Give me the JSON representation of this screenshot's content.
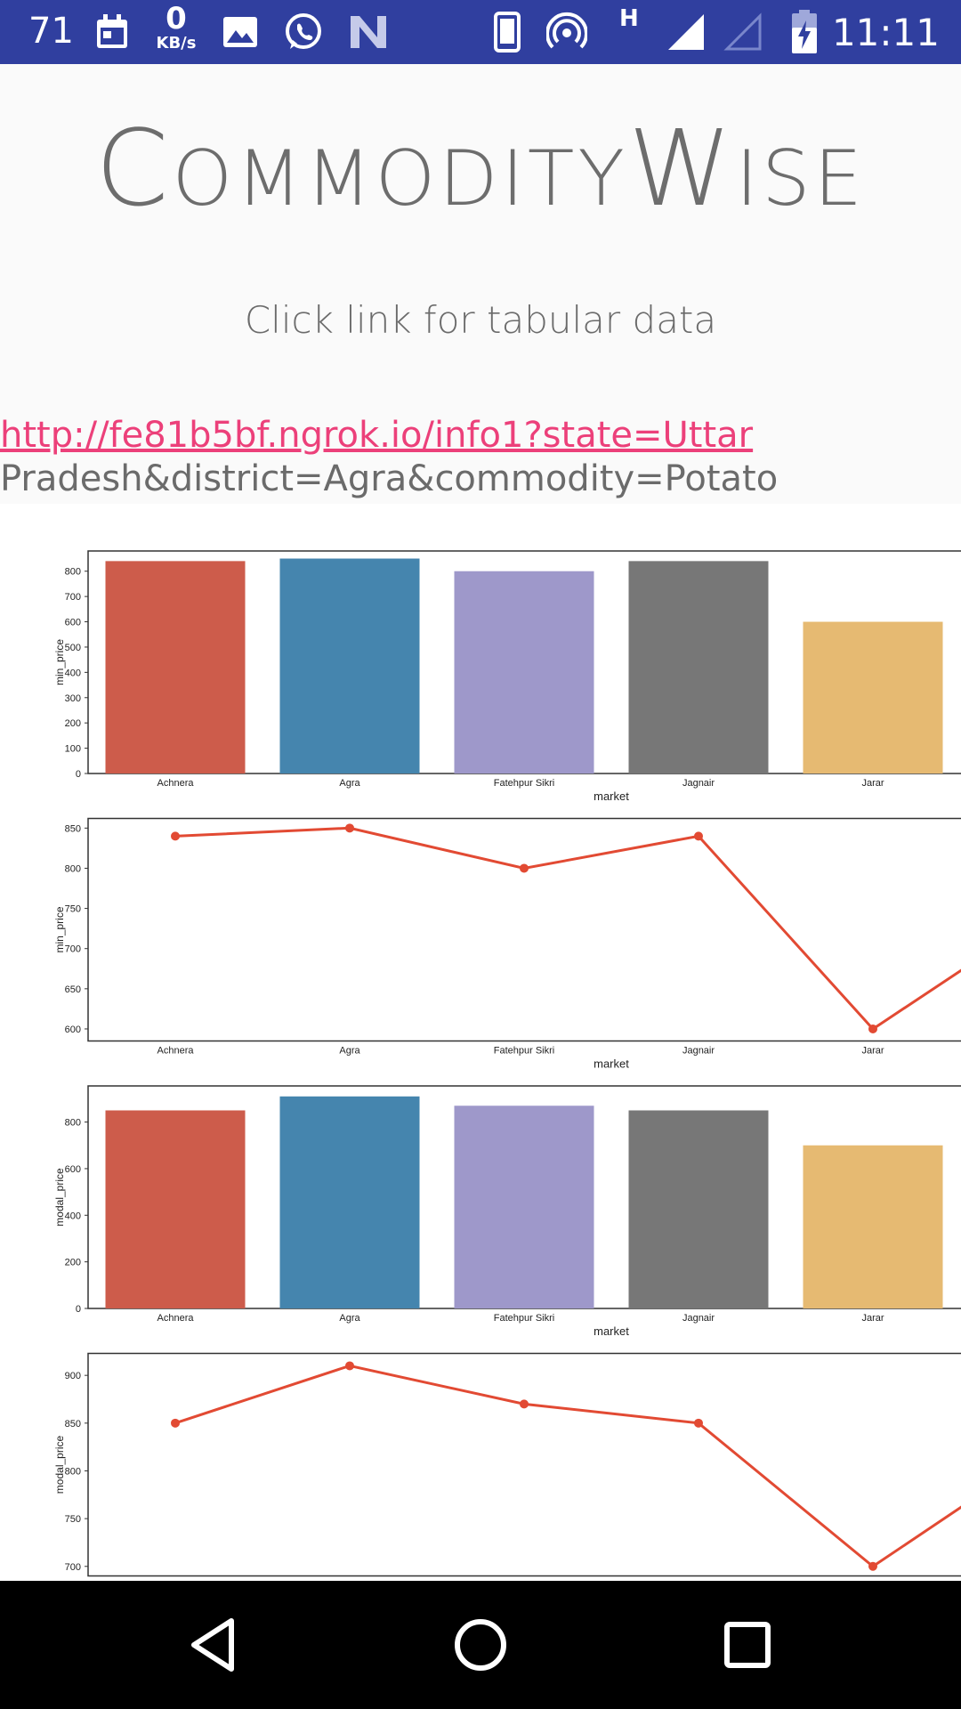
{
  "status_bar": {
    "notif_count": "71",
    "net_speed_value": "0",
    "net_speed_unit": "KB/s",
    "network_label": "H",
    "time": "11:11",
    "icons": [
      "calendar-icon",
      "image-icon",
      "whatsapp-icon",
      "n-app-icon",
      "phone-icon",
      "hotspot-icon",
      "signal-icon",
      "signal-empty-icon",
      "battery-charging-icon"
    ]
  },
  "app": {
    "title_c": "C",
    "title_ommodity": "OMMODITY",
    "title_w": "W",
    "title_ise": "ISE",
    "subtitle": "Click link for tabular data",
    "link_line1": "http://fe81b5bf.ngrok.io/info1?state=Uttar",
    "link_line2": "Pradesh&district=Agra&commodity=Potato"
  },
  "colors": {
    "status_bar": "#303f9f",
    "link": "#ec407a",
    "bars": [
      "#cd5c4b",
      "#4585ae",
      "#9e98ca",
      "#777777",
      "#e6ba72"
    ],
    "line": "#e24a33"
  },
  "chart_data": [
    {
      "type": "bar",
      "categories": [
        "Achnera",
        "Agra",
        "Fatehpur Sikri",
        "Jagnair",
        "Jarar"
      ],
      "values": [
        840,
        850,
        800,
        840,
        600
      ],
      "xlabel": "market",
      "ylabel": "min_price",
      "ylim": [
        0,
        880
      ],
      "yticks": [
        0,
        100,
        200,
        300,
        400,
        500,
        600,
        700,
        800
      ]
    },
    {
      "type": "line",
      "categories": [
        "Achnera",
        "Agra",
        "Fatehpur Sikri",
        "Jagnair",
        "Jarar"
      ],
      "values": [
        840,
        850,
        800,
        840,
        600
      ],
      "xlabel": "market",
      "ylabel": "min_price",
      "ylim": [
        585,
        862
      ],
      "yticks": [
        600,
        650,
        700,
        750,
        800,
        850
      ]
    },
    {
      "type": "bar",
      "categories": [
        "Achnera",
        "Agra",
        "Fatehpur Sikri",
        "Jagnair",
        "Jarar"
      ],
      "values": [
        850,
        910,
        870,
        850,
        700
      ],
      "xlabel": "market",
      "ylabel": "modal_price",
      "ylim": [
        0,
        955
      ],
      "yticks": [
        0,
        200,
        400,
        600,
        800
      ]
    },
    {
      "type": "line",
      "categories": [
        "Achnera",
        "Agra",
        "Fatehpur Sikri",
        "Jagnair",
        "Jarar"
      ],
      "values": [
        850,
        910,
        870,
        850,
        700
      ],
      "xlabel": "market",
      "ylabel": "modal_price",
      "ylim": [
        690,
        923
      ],
      "yticks": [
        700,
        750,
        800,
        850,
        900
      ]
    }
  ]
}
